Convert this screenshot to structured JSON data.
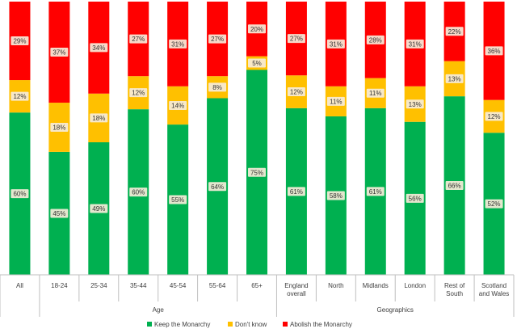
{
  "chart_data": {
    "type": "bar",
    "stacked": true,
    "normalized_percent": true,
    "categories": [
      "All",
      "18-24",
      "25-34",
      "35-44",
      "45-54",
      "55-64",
      "65+",
      "England overall",
      "North",
      "Midlands",
      "London",
      "Rest of South",
      "Scotland and Wales"
    ],
    "category_lines": [
      [
        "All"
      ],
      [
        "18-24"
      ],
      [
        "25-34"
      ],
      [
        "35-44"
      ],
      [
        "45-54"
      ],
      [
        "55-64"
      ],
      [
        "65+"
      ],
      [
        "England",
        "overall"
      ],
      [
        "North"
      ],
      [
        "Midlands"
      ],
      [
        "London"
      ],
      [
        "Rest of",
        "South"
      ],
      [
        "Scotland",
        "and Wales"
      ]
    ],
    "groups": [
      {
        "label": "Age",
        "start": 1,
        "end": 6
      },
      {
        "label": "Geographics",
        "start": 7,
        "end": 12
      }
    ],
    "series": [
      {
        "name": "Keep the Monarchy",
        "color": "#00b050",
        "values": [
          60,
          45,
          49,
          60,
          55,
          64,
          75,
          61,
          58,
          61,
          56,
          66,
          52
        ]
      },
      {
        "name": "Don't know",
        "color": "#ffc000",
        "values": [
          12,
          18,
          18,
          12,
          14,
          8,
          5,
          12,
          11,
          11,
          13,
          13,
          12
        ]
      },
      {
        "name": "Abolish the Monarchy",
        "color": "#ff0000",
        "values": [
          29,
          37,
          34,
          27,
          31,
          27,
          20,
          27,
          31,
          28,
          31,
          22,
          36
        ]
      }
    ],
    "data_label_format": "{v}%",
    "legend": {
      "position": "bottom"
    },
    "grid": false
  }
}
